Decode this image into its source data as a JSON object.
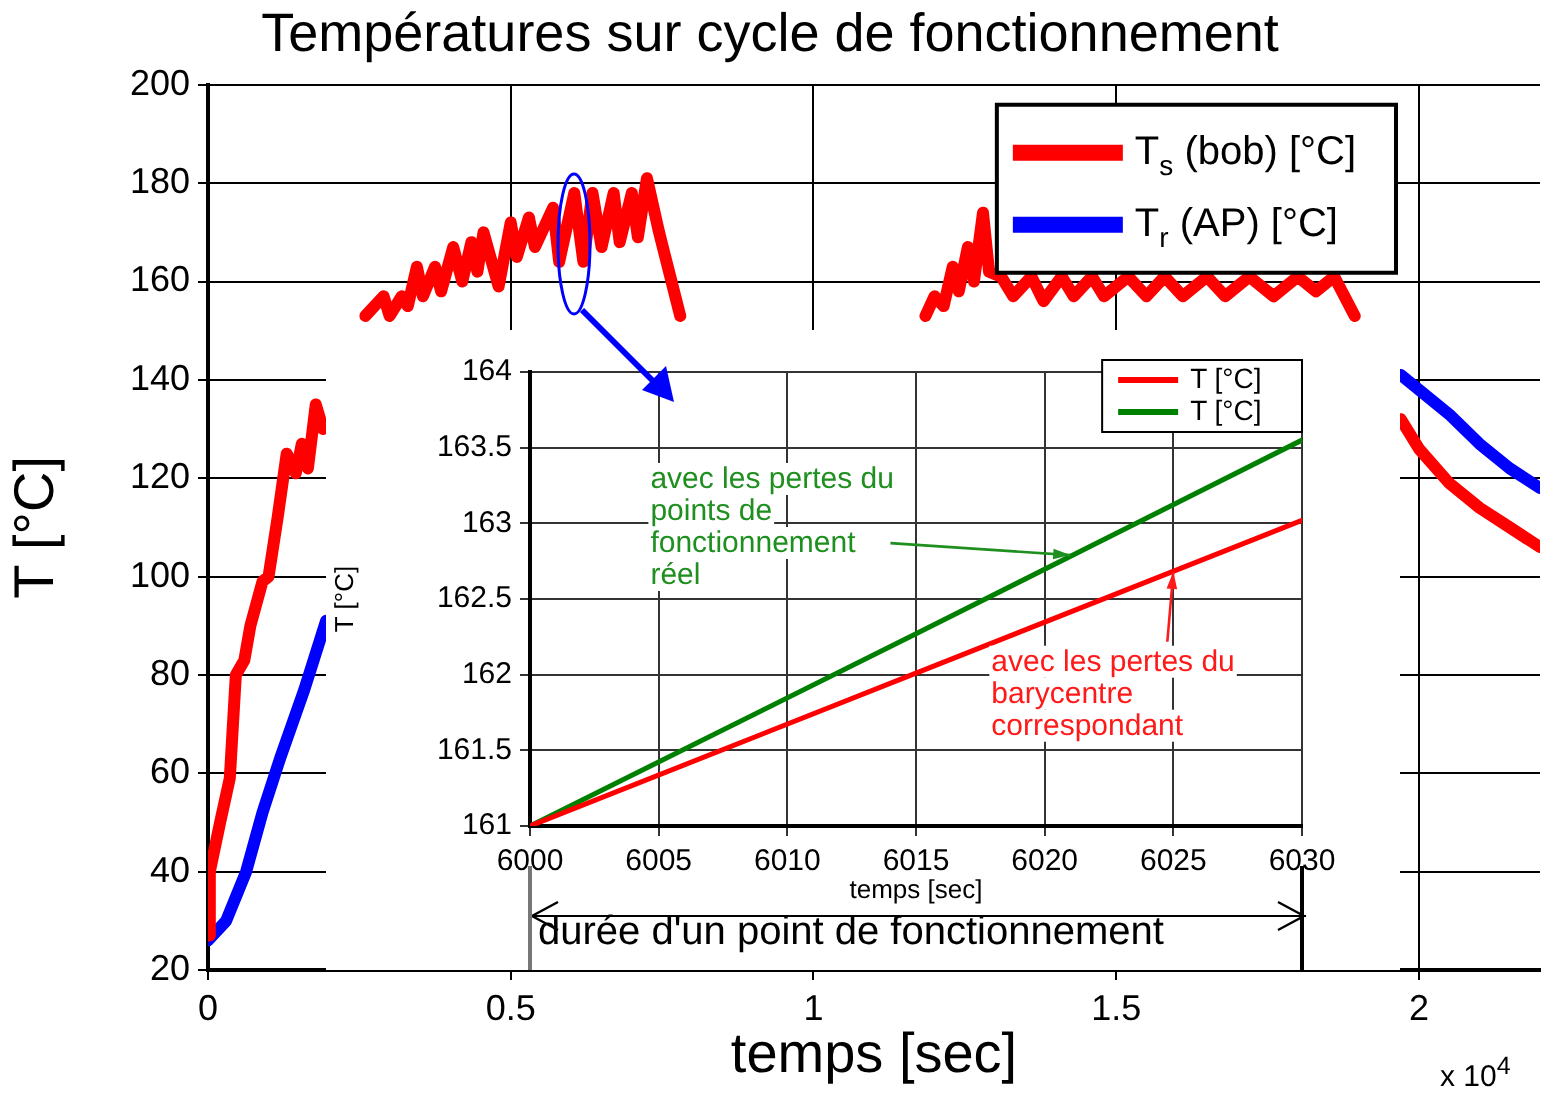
{
  "chart_data": [
    {
      "type": "line",
      "title": "Températures sur cycle de fonctionnement",
      "xlabel": "temps [sec]",
      "ylabel": "T [°C]",
      "xlim": [
        0,
        2.2
      ],
      "xticks": [
        0,
        0.5,
        1,
        1.5,
        2
      ],
      "ylim": [
        20,
        200
      ],
      "yticks": [
        20,
        40,
        60,
        80,
        100,
        120,
        140,
        160,
        180,
        200
      ],
      "grid": true,
      "legend": "top right",
      "annotations": [
        "x 10$^{4}$",
        "durée d'un point de fonctionnement"
      ],
      "series": [
        {
          "name": "T$_{s}$ (bob) [°C]",
          "color": "#ff0000",
          "x": [
            0,
            0.003,
            0.02,
            0.036,
            0.046,
            0.06,
            0.07,
            0.09,
            0.1,
            0.115,
            0.13,
            0.145,
            0.155,
            0.165,
            0.178,
            0.19,
            0.23,
            0.26,
            0.29,
            0.3,
            0.32,
            0.33,
            0.345,
            0.355,
            0.375,
            0.385,
            0.405,
            0.42,
            0.435,
            0.445,
            0.455,
            0.48,
            0.5,
            0.51,
            0.53,
            0.54,
            0.57,
            0.58,
            0.605,
            0.62,
            0.635,
            0.65,
            0.67,
            0.68,
            0.7,
            0.71,
            0.725,
            0.745,
            0.78,
            1.0,
            1.185,
            1.2,
            1.215,
            1.23,
            1.24,
            1.255,
            1.265,
            1.28,
            1.29,
            1.31,
            1.33,
            1.36,
            1.38,
            1.41,
            1.43,
            1.46,
            1.48,
            1.52,
            1.55,
            1.58,
            1.61,
            1.65,
            1.68,
            1.72,
            1.76,
            1.8,
            1.83,
            1.86,
            1.894,
            1.93,
            1.97,
            2.0,
            2.05,
            2.1,
            2.15,
            2.2
          ],
          "values": [
            27,
            40,
            50,
            59,
            80,
            83,
            90,
            99,
            100,
            112,
            125,
            121,
            127,
            122,
            135,
            130,
            null,
            153,
            157,
            153,
            157,
            155,
            163,
            157,
            163,
            158,
            167,
            160,
            168,
            162,
            170,
            159,
            172,
            165,
            173,
            167,
            175,
            164,
            178,
            164,
            178,
            167,
            178,
            168,
            178,
            169,
            181,
            170,
            153,
            null,
            153,
            157,
            155,
            163,
            158,
            167,
            160,
            174,
            162,
            161,
            157,
            161,
            156,
            161,
            157,
            161,
            157,
            161,
            157,
            161,
            157,
            161,
            157,
            161,
            157,
            161,
            158,
            161,
            153,
            null,
            132,
            126,
            119,
            114,
            110,
            106
          ]
        },
        {
          "name": "T$_{r}$ (AP) [°C]",
          "color": "#0000ff",
          "x": [
            0,
            0.03,
            0.063,
            0.09,
            0.119,
            0.159,
            0.195,
            1.0,
            1.97,
            2.05,
            2.1,
            2.15,
            2.2
          ],
          "values": [
            26,
            30,
            40,
            52,
            63,
            77,
            91,
            null,
            141,
            133,
            127,
            122,
            118
          ]
        }
      ]
    },
    {
      "type": "line",
      "xlabel": "temps [sec]",
      "ylabel": "T [°C]",
      "xlim": [
        6000,
        6030
      ],
      "xticks": [
        6000,
        6005,
        6010,
        6015,
        6020,
        6025,
        6030
      ],
      "ylim": [
        161,
        164
      ],
      "yticks": [
        161,
        161.5,
        162,
        162.5,
        163,
        163.5,
        164
      ],
      "grid": true,
      "legend": "top right",
      "annotations": [
        {
          "text": "avec les pertes du points de fonctionnement réel",
          "x": 6021,
          "y": 162.79
        },
        {
          "text": "avec les pertes du barycentre correspondant",
          "x": 6025,
          "y": 162.68
        }
      ],
      "series": [
        {
          "name": "T [°C]",
          "color": "#ff0000",
          "x": [
            6000,
            6015,
            6030
          ],
          "values": [
            161,
            162.01,
            163.02
          ]
        },
        {
          "name": "T [°C]",
          "color": "#008000",
          "x": [
            6000,
            6015,
            6030
          ],
          "values": [
            161,
            162.27,
            163.55
          ]
        }
      ]
    }
  ]
}
